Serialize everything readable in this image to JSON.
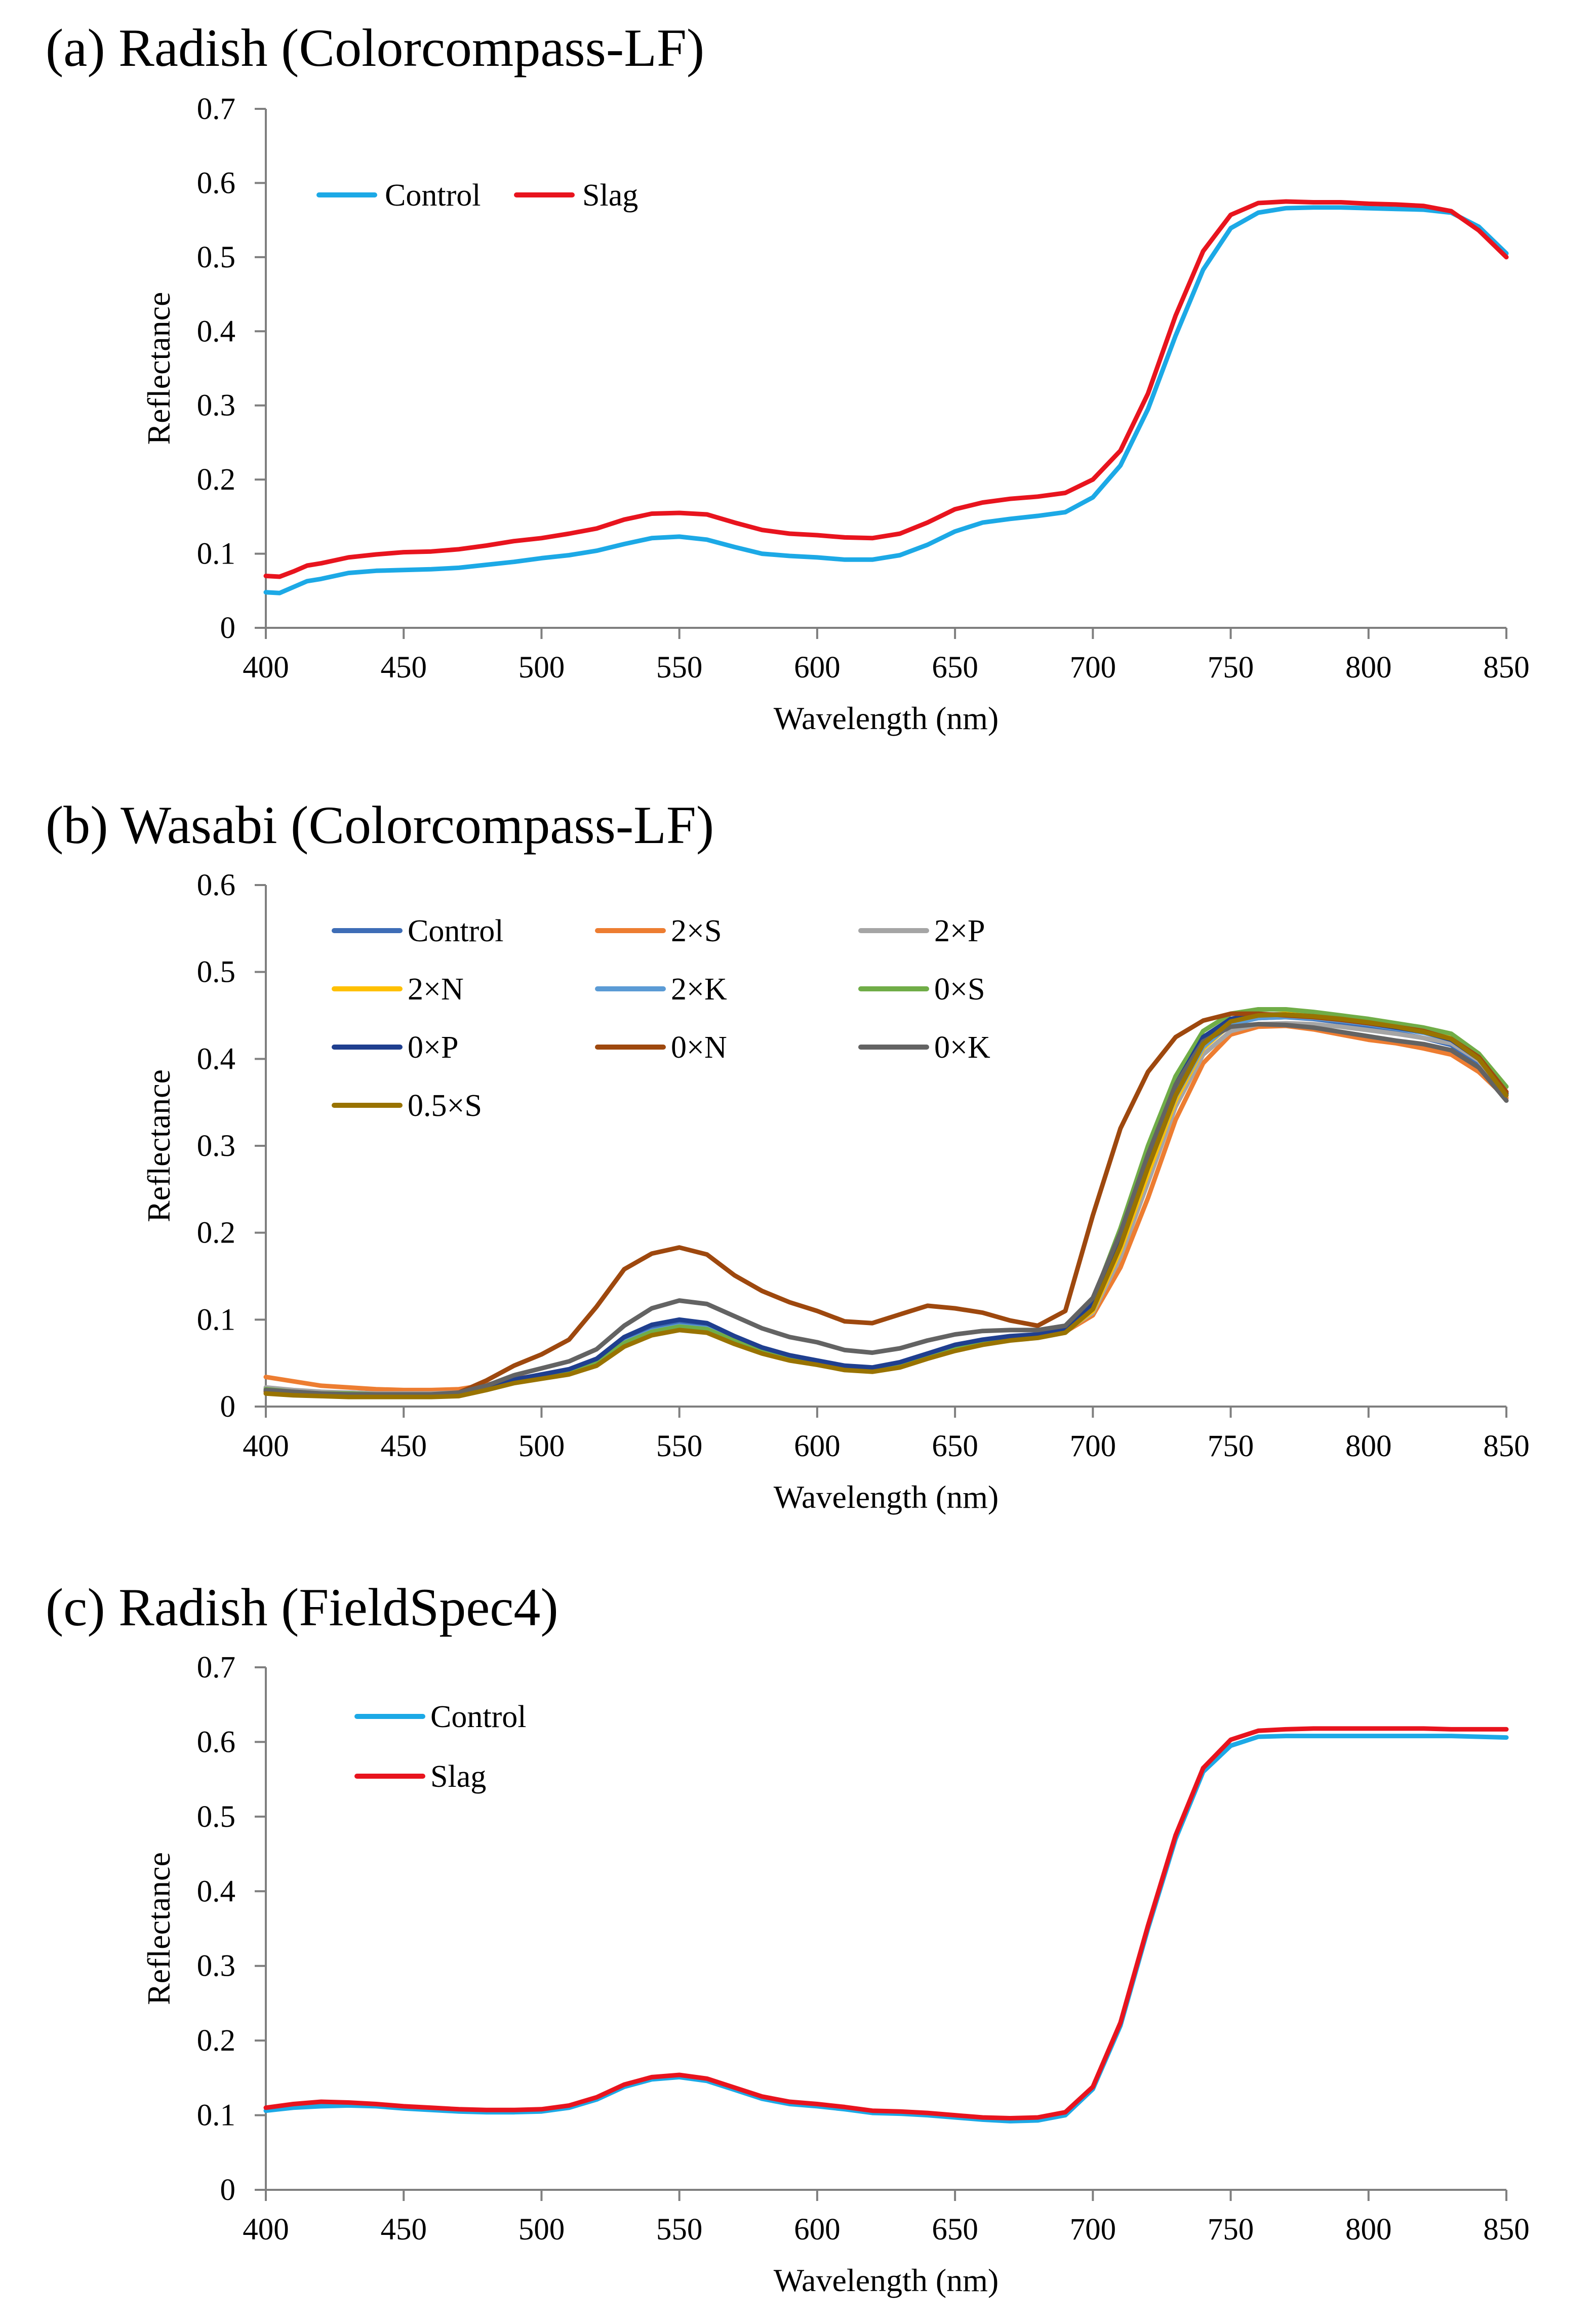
{
  "chart_data": [
    {
      "type": "line",
      "title": "(a) Radish (Colorcompass-LF)",
      "xlabel": "Wavelength (nm)",
      "ylabel": "Reflectance",
      "xlim": [
        400,
        850
      ],
      "ylim": [
        0,
        0.7
      ],
      "xticks": [
        400,
        450,
        500,
        550,
        600,
        650,
        700,
        750,
        800,
        850
      ],
      "yticks": [
        0,
        0.1,
        0.2,
        0.3,
        0.4,
        0.5,
        0.6,
        0.7
      ],
      "legend_position": "top-left",
      "legend_layout": "row",
      "x": [
        400,
        405,
        410,
        415,
        420,
        430,
        440,
        450,
        460,
        470,
        480,
        490,
        500,
        510,
        520,
        530,
        540,
        550,
        560,
        570,
        580,
        590,
        600,
        610,
        620,
        630,
        640,
        650,
        660,
        670,
        680,
        690,
        700,
        710,
        720,
        730,
        740,
        750,
        760,
        770,
        780,
        790,
        800,
        810,
        820,
        830,
        840,
        850
      ],
      "series": [
        {
          "name": "Control",
          "color": "#1CA9E6",
          "values": [
            0.048,
            0.047,
            0.055,
            0.063,
            0.066,
            0.074,
            0.077,
            0.078,
            0.079,
            0.081,
            0.085,
            0.089,
            0.094,
            0.098,
            0.104,
            0.113,
            0.121,
            0.123,
            0.119,
            0.109,
            0.1,
            0.097,
            0.095,
            0.092,
            0.092,
            0.098,
            0.112,
            0.13,
            0.142,
            0.147,
            0.151,
            0.156,
            0.176,
            0.219,
            0.295,
            0.394,
            0.483,
            0.539,
            0.56,
            0.566,
            0.567,
            0.567,
            0.566,
            0.565,
            0.564,
            0.56,
            0.541,
            0.505
          ]
        },
        {
          "name": "Slag",
          "color": "#E8141E",
          "values": [
            0.07,
            0.069,
            0.076,
            0.084,
            0.087,
            0.095,
            0.099,
            0.102,
            0.103,
            0.106,
            0.111,
            0.117,
            0.121,
            0.127,
            0.134,
            0.146,
            0.154,
            0.155,
            0.153,
            0.142,
            0.132,
            0.127,
            0.125,
            0.122,
            0.121,
            0.127,
            0.142,
            0.16,
            0.169,
            0.174,
            0.177,
            0.182,
            0.2,
            0.239,
            0.316,
            0.421,
            0.508,
            0.557,
            0.573,
            0.575,
            0.574,
            0.574,
            0.572,
            0.571,
            0.569,
            0.562,
            0.536,
            0.5
          ]
        }
      ]
    },
    {
      "type": "line",
      "title": "(b) Wasabi (Colorcompass-LF)",
      "xlabel": "Wavelength (nm)",
      "ylabel": "Reflectance",
      "xlim": [
        400,
        850
      ],
      "ylim": [
        0,
        0.6
      ],
      "xticks": [
        400,
        450,
        500,
        550,
        600,
        650,
        700,
        750,
        800,
        850
      ],
      "yticks": [
        0,
        0.1,
        0.2,
        0.3,
        0.4,
        0.5,
        0.6
      ],
      "legend_position": "top-left",
      "legend_layout": "3-column grid",
      "x": [
        400,
        410,
        420,
        430,
        440,
        450,
        460,
        470,
        480,
        490,
        500,
        510,
        520,
        530,
        540,
        550,
        560,
        570,
        580,
        590,
        600,
        610,
        620,
        630,
        640,
        650,
        660,
        670,
        680,
        690,
        700,
        710,
        720,
        730,
        740,
        750,
        760,
        770,
        780,
        790,
        800,
        810,
        820,
        830,
        840,
        850
      ],
      "series": [
        {
          "name": "Control",
          "color": "#3E6DB6",
          "values": [
            0.02,
            0.018,
            0.016,
            0.016,
            0.015,
            0.015,
            0.015,
            0.016,
            0.022,
            0.031,
            0.036,
            0.041,
            0.052,
            0.076,
            0.09,
            0.096,
            0.092,
            0.078,
            0.066,
            0.058,
            0.052,
            0.046,
            0.044,
            0.05,
            0.06,
            0.07,
            0.076,
            0.08,
            0.082,
            0.088,
            0.115,
            0.19,
            0.28,
            0.36,
            0.415,
            0.44,
            0.447,
            0.448,
            0.446,
            0.442,
            0.436,
            0.43,
            0.424,
            0.416,
            0.395,
            0.36
          ]
        },
        {
          "name": "2×S",
          "color": "#ED7D31",
          "values": [
            0.034,
            0.029,
            0.024,
            0.022,
            0.02,
            0.019,
            0.019,
            0.02,
            0.025,
            0.032,
            0.036,
            0.041,
            0.05,
            0.073,
            0.086,
            0.092,
            0.089,
            0.076,
            0.064,
            0.056,
            0.05,
            0.044,
            0.042,
            0.047,
            0.057,
            0.066,
            0.073,
            0.078,
            0.081,
            0.086,
            0.105,
            0.16,
            0.24,
            0.33,
            0.395,
            0.428,
            0.437,
            0.438,
            0.434,
            0.428,
            0.422,
            0.418,
            0.412,
            0.405,
            0.385,
            0.355
          ]
        },
        {
          "name": "2×P",
          "color": "#A5A5A5",
          "values": [
            0.022,
            0.019,
            0.017,
            0.016,
            0.015,
            0.015,
            0.015,
            0.016,
            0.022,
            0.03,
            0.035,
            0.04,
            0.05,
            0.073,
            0.086,
            0.092,
            0.089,
            0.076,
            0.065,
            0.057,
            0.051,
            0.045,
            0.043,
            0.048,
            0.058,
            0.068,
            0.074,
            0.079,
            0.082,
            0.087,
            0.108,
            0.172,
            0.258,
            0.345,
            0.405,
            0.432,
            0.44,
            0.441,
            0.44,
            0.437,
            0.433,
            0.429,
            0.424,
            0.418,
            0.398,
            0.36
          ]
        },
        {
          "name": "2×N",
          "color": "#FFC000",
          "values": [
            0.019,
            0.016,
            0.014,
            0.013,
            0.013,
            0.013,
            0.013,
            0.014,
            0.02,
            0.028,
            0.033,
            0.038,
            0.048,
            0.071,
            0.084,
            0.089,
            0.086,
            0.073,
            0.062,
            0.054,
            0.049,
            0.043,
            0.041,
            0.046,
            0.056,
            0.066,
            0.073,
            0.078,
            0.081,
            0.086,
            0.11,
            0.18,
            0.268,
            0.352,
            0.412,
            0.44,
            0.45,
            0.452,
            0.45,
            0.447,
            0.443,
            0.438,
            0.433,
            0.425,
            0.403,
            0.362
          ]
        },
        {
          "name": "2×K",
          "color": "#5B9BD5",
          "values": [
            0.019,
            0.016,
            0.015,
            0.014,
            0.014,
            0.014,
            0.014,
            0.015,
            0.021,
            0.029,
            0.034,
            0.039,
            0.05,
            0.074,
            0.087,
            0.093,
            0.09,
            0.076,
            0.064,
            0.056,
            0.05,
            0.044,
            0.042,
            0.048,
            0.058,
            0.068,
            0.075,
            0.079,
            0.082,
            0.087,
            0.112,
            0.185,
            0.275,
            0.357,
            0.414,
            0.44,
            0.447,
            0.448,
            0.447,
            0.444,
            0.44,
            0.435,
            0.43,
            0.422,
            0.4,
            0.36
          ]
        },
        {
          "name": "0×S",
          "color": "#70AD47",
          "values": [
            0.02,
            0.017,
            0.015,
            0.015,
            0.014,
            0.014,
            0.014,
            0.015,
            0.021,
            0.029,
            0.034,
            0.039,
            0.05,
            0.073,
            0.086,
            0.092,
            0.089,
            0.076,
            0.064,
            0.056,
            0.05,
            0.044,
            0.042,
            0.047,
            0.057,
            0.067,
            0.074,
            0.079,
            0.082,
            0.09,
            0.122,
            0.205,
            0.3,
            0.38,
            0.432,
            0.452,
            0.457,
            0.457,
            0.454,
            0.45,
            0.446,
            0.441,
            0.436,
            0.429,
            0.406,
            0.368
          ]
        },
        {
          "name": "0×P",
          "color": "#1F3F8F",
          "values": [
            0.018,
            0.016,
            0.014,
            0.014,
            0.013,
            0.013,
            0.013,
            0.015,
            0.022,
            0.031,
            0.037,
            0.043,
            0.055,
            0.08,
            0.094,
            0.1,
            0.096,
            0.081,
            0.068,
            0.059,
            0.053,
            0.047,
            0.045,
            0.051,
            0.061,
            0.071,
            0.077,
            0.081,
            0.083,
            0.089,
            0.118,
            0.195,
            0.288,
            0.37,
            0.425,
            0.446,
            0.451,
            0.451,
            0.449,
            0.445,
            0.441,
            0.436,
            0.431,
            0.422,
            0.4,
            0.36
          ]
        },
        {
          "name": "0×N",
          "color": "#9E480E",
          "values": [
            0.017,
            0.015,
            0.014,
            0.013,
            0.013,
            0.013,
            0.013,
            0.016,
            0.03,
            0.047,
            0.06,
            0.077,
            0.115,
            0.158,
            0.176,
            0.183,
            0.175,
            0.151,
            0.133,
            0.12,
            0.11,
            0.098,
            0.096,
            0.106,
            0.116,
            0.113,
            0.108,
            0.099,
            0.093,
            0.11,
            0.22,
            0.32,
            0.385,
            0.425,
            0.444,
            0.452,
            0.452,
            0.45,
            0.448,
            0.445,
            0.441,
            0.437,
            0.432,
            0.423,
            0.402,
            0.362
          ]
        },
        {
          "name": "0×K",
          "color": "#636363",
          "values": [
            0.019,
            0.017,
            0.015,
            0.014,
            0.014,
            0.014,
            0.014,
            0.016,
            0.024,
            0.036,
            0.044,
            0.052,
            0.066,
            0.093,
            0.113,
            0.122,
            0.118,
            0.104,
            0.09,
            0.08,
            0.074,
            0.065,
            0.062,
            0.067,
            0.076,
            0.083,
            0.087,
            0.088,
            0.088,
            0.093,
            0.125,
            0.2,
            0.29,
            0.37,
            0.42,
            0.437,
            0.44,
            0.439,
            0.436,
            0.431,
            0.426,
            0.421,
            0.417,
            0.41,
            0.39,
            0.352
          ]
        },
        {
          "name": "0.5×S",
          "color": "#997300",
          "values": [
            0.015,
            0.013,
            0.012,
            0.011,
            0.011,
            0.011,
            0.011,
            0.012,
            0.019,
            0.027,
            0.032,
            0.037,
            0.047,
            0.069,
            0.082,
            0.088,
            0.085,
            0.072,
            0.061,
            0.053,
            0.048,
            0.042,
            0.04,
            0.045,
            0.055,
            0.064,
            0.071,
            0.076,
            0.079,
            0.085,
            0.112,
            0.185,
            0.275,
            0.358,
            0.417,
            0.443,
            0.45,
            0.451,
            0.449,
            0.446,
            0.442,
            0.437,
            0.431,
            0.423,
            0.4,
            0.358
          ]
        }
      ]
    },
    {
      "type": "line",
      "title": "(c) Radish (FieldSpec4)",
      "xlabel": "Wavelength (nm)",
      "ylabel": "Reflectance",
      "xlim": [
        400,
        850
      ],
      "ylim": [
        0,
        0.7
      ],
      "xticks": [
        400,
        450,
        500,
        550,
        600,
        650,
        700,
        750,
        800,
        850
      ],
      "yticks": [
        0,
        0.1,
        0.2,
        0.3,
        0.4,
        0.5,
        0.6,
        0.7
      ],
      "legend_position": "top-left",
      "legend_layout": "column",
      "x": [
        400,
        410,
        420,
        430,
        440,
        450,
        460,
        470,
        480,
        490,
        500,
        510,
        520,
        530,
        540,
        550,
        560,
        570,
        580,
        590,
        600,
        610,
        620,
        630,
        640,
        650,
        660,
        670,
        680,
        690,
        700,
        710,
        720,
        730,
        740,
        750,
        760,
        770,
        780,
        790,
        800,
        810,
        820,
        830,
        840,
        850
      ],
      "series": [
        {
          "name": "Control",
          "color": "#1CA9E6",
          "values": [
            0.106,
            0.11,
            0.112,
            0.113,
            0.112,
            0.109,
            0.107,
            0.105,
            0.104,
            0.104,
            0.105,
            0.11,
            0.121,
            0.138,
            0.148,
            0.151,
            0.146,
            0.134,
            0.122,
            0.115,
            0.112,
            0.108,
            0.103,
            0.102,
            0.1,
            0.097,
            0.094,
            0.092,
            0.093,
            0.1,
            0.135,
            0.22,
            0.35,
            0.47,
            0.56,
            0.595,
            0.607,
            0.608,
            0.608,
            0.608,
            0.608,
            0.608,
            0.608,
            0.608,
            0.607,
            0.606
          ]
        },
        {
          "name": "Slag",
          "color": "#E8141E",
          "values": [
            0.11,
            0.115,
            0.118,
            0.117,
            0.115,
            0.112,
            0.11,
            0.108,
            0.107,
            0.107,
            0.108,
            0.113,
            0.124,
            0.141,
            0.151,
            0.154,
            0.149,
            0.137,
            0.125,
            0.118,
            0.115,
            0.111,
            0.106,
            0.105,
            0.103,
            0.1,
            0.097,
            0.096,
            0.097,
            0.104,
            0.138,
            0.224,
            0.354,
            0.475,
            0.565,
            0.603,
            0.615,
            0.617,
            0.618,
            0.618,
            0.618,
            0.618,
            0.618,
            0.617,
            0.617,
            0.617
          ]
        }
      ]
    }
  ]
}
